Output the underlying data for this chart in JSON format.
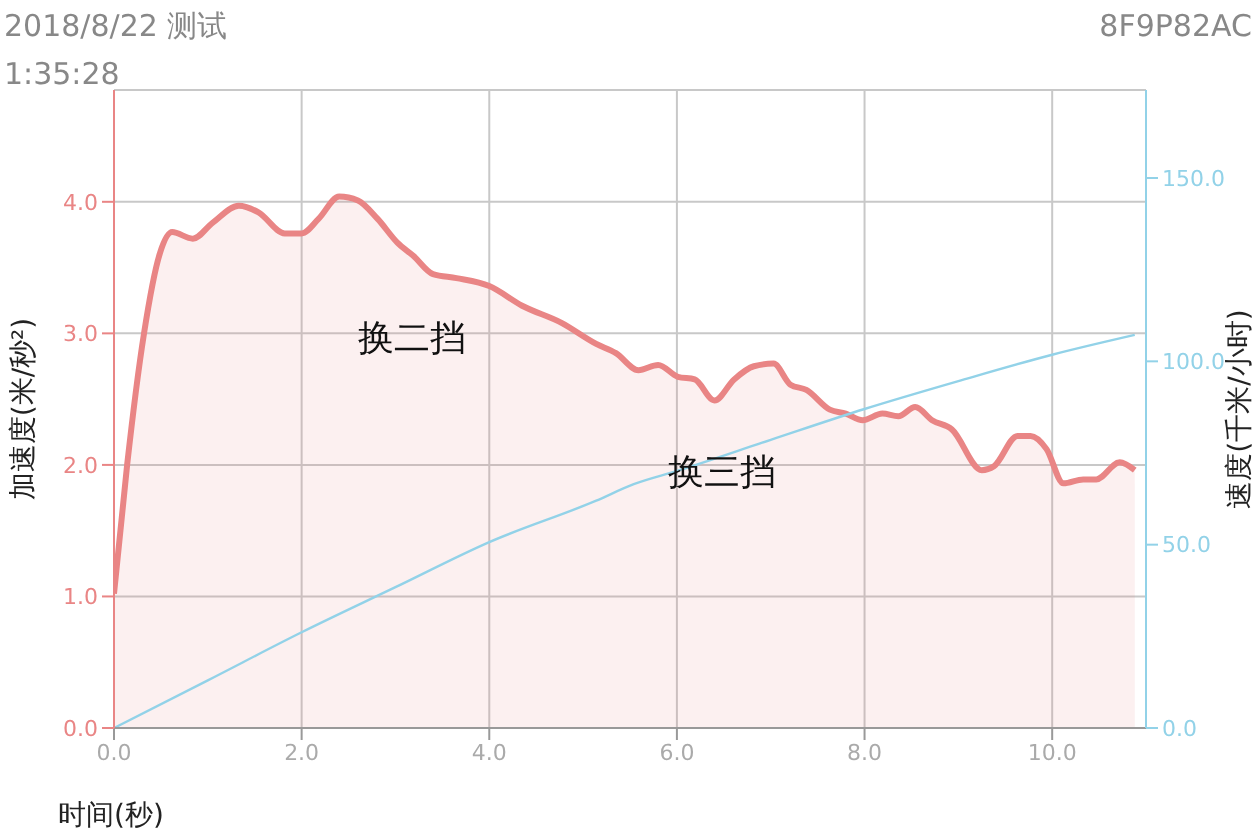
{
  "chart_data": {
    "type": "area",
    "xlabel": "时间(秒)",
    "ylabel": "加速度(米/秒²)",
    "y2label": "速度(千米/小时)",
    "annotations": [
      "2018/8/22 测试",
      "1:35:28",
      "8F9P82AC",
      "换二挡",
      "换三挡"
    ],
    "xlim": [
      0,
      11
    ],
    "ylim": [
      0,
      4.85
    ],
    "y2lim": [
      0,
      174
    ],
    "xticks": [
      {
        "value": 0,
        "label": "0.0"
      },
      {
        "value": 2,
        "label": "2.0"
      },
      {
        "value": 4,
        "label": "4.0"
      },
      {
        "value": 6,
        "label": "6.0"
      },
      {
        "value": 8,
        "label": "8.0"
      },
      {
        "value": 10,
        "label": "10.0"
      }
    ],
    "yticks": [
      {
        "value": 0,
        "label": "0.0"
      },
      {
        "value": 1,
        "label": "1.0"
      },
      {
        "value": 2,
        "label": "2.0"
      },
      {
        "value": 3,
        "label": "3.0"
      },
      {
        "value": 4,
        "label": "4.0"
      }
    ],
    "y2ticks": [
      {
        "value": 0,
        "label": "0.0"
      },
      {
        "value": 50,
        "label": "50.0"
      },
      {
        "value": 100,
        "label": "100.0"
      },
      {
        "value": 150,
        "label": "150.0"
      }
    ],
    "grid": true,
    "legend": false,
    "marker": "none",
    "series": [
      {
        "color": "#e98585",
        "x": [
          0,
          0.14,
          0.32,
          0.49,
          0.62,
          0.84,
          1.05,
          1.33,
          1.54,
          1.82,
          2.0,
          2.18,
          2.4,
          2.6,
          2.81,
          3.02,
          3.19,
          3.4,
          3.65,
          4.0,
          4.35,
          4.77,
          5.14,
          5.35,
          5.59,
          5.8,
          6.01,
          6.19,
          6.4,
          6.61,
          6.82,
          7.03,
          7.21,
          7.38,
          7.63,
          7.8,
          7.98,
          8.19,
          8.36,
          8.54,
          8.72,
          8.93,
          9.25,
          9.38,
          9.63,
          9.77,
          9.94,
          10.12,
          10.33,
          10.47,
          10.72,
          10.88
        ],
        "values": [
          1.02,
          2.0,
          3.0,
          3.61,
          3.77,
          3.72,
          3.84,
          3.97,
          3.92,
          3.76,
          3.76,
          3.87,
          4.04,
          4.01,
          3.87,
          3.69,
          3.59,
          3.45,
          3.42,
          3.36,
          3.21,
          3.08,
          2.92,
          2.85,
          2.72,
          2.76,
          2.67,
          2.65,
          2.49,
          2.65,
          2.75,
          2.77,
          2.61,
          2.57,
          2.42,
          2.39,
          2.34,
          2.39,
          2.37,
          2.44,
          2.34,
          2.27,
          1.96,
          1.99,
          2.22,
          2.22,
          2.12,
          1.86,
          1.89,
          1.89,
          2.02,
          1.96
        ]
      },
      {
        "type": "line",
        "axis": "y2",
        "color": "#92d2e8",
        "x": [
          0,
          1,
          2,
          3,
          4,
          5.14,
          5.54,
          6,
          7,
          8,
          9,
          10,
          10.88
        ],
        "values": [
          0,
          13,
          26.1,
          38.4,
          50.7,
          62,
          66.5,
          70.1,
          78.6,
          87,
          94.6,
          101.8,
          107.2
        ]
      }
    ]
  }
}
